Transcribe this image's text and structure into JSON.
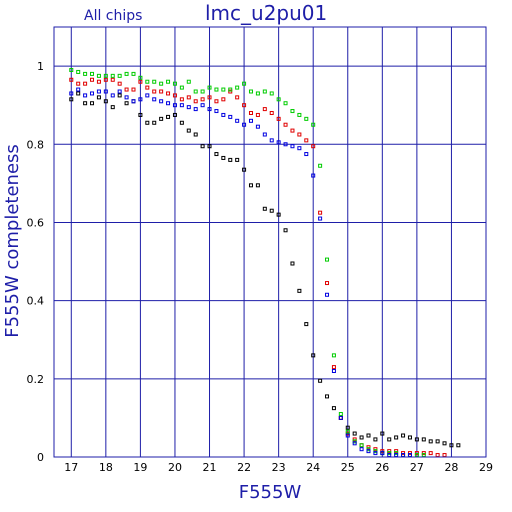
{
  "chart_data": {
    "type": "scatter",
    "title": "lmc_u2pu01",
    "subtitle": "All chips",
    "xlabel": "F555W",
    "ylabel": "F555W completeness",
    "xlim": [
      16.5,
      29
    ],
    "ylim": [
      0,
      1.1
    ],
    "x_ticks": [
      17,
      18,
      19,
      20,
      21,
      22,
      23,
      24,
      25,
      26,
      27,
      28,
      29
    ],
    "y_ticks": [
      0,
      0.2,
      0.4,
      0.6,
      0.8,
      1
    ],
    "y_tick_labels": [
      "0",
      "0.2",
      "0.4",
      "0.6",
      "0.8",
      "1"
    ],
    "grid": true,
    "colors": {
      "axis": "#1e1ea8",
      "grid": "#1e1ea8"
    },
    "series": [
      {
        "color": "#000000",
        "points": [
          [
            17,
            0.915
          ],
          [
            17.2,
            0.93
          ],
          [
            17.4,
            0.905
          ],
          [
            17.6,
            0.905
          ],
          [
            17.8,
            0.92
          ],
          [
            18,
            0.91
          ],
          [
            18.2,
            0.895
          ],
          [
            18.4,
            0.925
          ],
          [
            18.6,
            0.905
          ],
          [
            18.8,
            0.91
          ],
          [
            19,
            0.875
          ],
          [
            19.2,
            0.855
          ],
          [
            19.4,
            0.855
          ],
          [
            19.6,
            0.865
          ],
          [
            19.8,
            0.87
          ],
          [
            20,
            0.875
          ],
          [
            20.2,
            0.855
          ],
          [
            20.4,
            0.835
          ],
          [
            20.6,
            0.825
          ],
          [
            20.8,
            0.795
          ],
          [
            21,
            0.795
          ],
          [
            21.2,
            0.775
          ],
          [
            21.4,
            0.765
          ],
          [
            21.6,
            0.76
          ],
          [
            21.8,
            0.76
          ],
          [
            22,
            0.735
          ],
          [
            22.2,
            0.695
          ],
          [
            22.4,
            0.695
          ],
          [
            22.6,
            0.635
          ],
          [
            22.8,
            0.63
          ],
          [
            23,
            0.62
          ],
          [
            23.2,
            0.58
          ],
          [
            23.4,
            0.495
          ],
          [
            23.6,
            0.425
          ],
          [
            23.8,
            0.34
          ],
          [
            24,
            0.26
          ],
          [
            24.2,
            0.195
          ],
          [
            24.4,
            0.155
          ],
          [
            24.6,
            0.125
          ],
          [
            24.8,
            0.1
          ],
          [
            25,
            0.075
          ],
          [
            25.2,
            0.06
          ],
          [
            25.4,
            0.05
          ],
          [
            25.6,
            0.055
          ],
          [
            25.8,
            0.045
          ],
          [
            26,
            0.06
          ],
          [
            26.2,
            0.045
          ],
          [
            26.4,
            0.05
          ],
          [
            26.6,
            0.055
          ],
          [
            26.8,
            0.05
          ],
          [
            27,
            0.045
          ],
          [
            27.2,
            0.045
          ],
          [
            27.4,
            0.04
          ],
          [
            27.6,
            0.04
          ],
          [
            27.8,
            0.035
          ],
          [
            28,
            0.03
          ],
          [
            28.2,
            0.03
          ]
        ]
      },
      {
        "color": "#e00000",
        "points": [
          [
            17,
            0.965
          ],
          [
            17.2,
            0.955
          ],
          [
            17.4,
            0.955
          ],
          [
            17.6,
            0.965
          ],
          [
            17.8,
            0.96
          ],
          [
            18,
            0.965
          ],
          [
            18.2,
            0.965
          ],
          [
            18.4,
            0.955
          ],
          [
            18.6,
            0.94
          ],
          [
            18.8,
            0.94
          ],
          [
            19,
            0.96
          ],
          [
            19.2,
            0.945
          ],
          [
            19.4,
            0.935
          ],
          [
            19.6,
            0.935
          ],
          [
            19.8,
            0.93
          ],
          [
            20,
            0.925
          ],
          [
            20.2,
            0.915
          ],
          [
            20.4,
            0.92
          ],
          [
            20.6,
            0.91
          ],
          [
            20.8,
            0.915
          ],
          [
            21,
            0.92
          ],
          [
            21.2,
            0.91
          ],
          [
            21.4,
            0.915
          ],
          [
            21.6,
            0.935
          ],
          [
            21.8,
            0.92
          ],
          [
            22,
            0.9
          ],
          [
            22.2,
            0.88
          ],
          [
            22.4,
            0.875
          ],
          [
            22.6,
            0.89
          ],
          [
            22.8,
            0.88
          ],
          [
            23,
            0.865
          ],
          [
            23.2,
            0.85
          ],
          [
            23.4,
            0.835
          ],
          [
            23.6,
            0.825
          ],
          [
            23.8,
            0.81
          ],
          [
            24,
            0.795
          ],
          [
            24.2,
            0.625
          ],
          [
            24.4,
            0.445
          ],
          [
            24.6,
            0.23
          ],
          [
            24.8,
            0.1
          ],
          [
            25,
            0.06
          ],
          [
            25.2,
            0.045
          ],
          [
            25.4,
            0.03
          ],
          [
            25.6,
            0.025
          ],
          [
            25.8,
            0.02
          ],
          [
            26,
            0.015
          ],
          [
            26.2,
            0.015
          ],
          [
            26.4,
            0.015
          ],
          [
            26.6,
            0.01
          ],
          [
            26.8,
            0.01
          ],
          [
            27,
            0.01
          ],
          [
            27.2,
            0.01
          ],
          [
            27.4,
            0.01
          ],
          [
            27.6,
            0.005
          ],
          [
            27.8,
            0.005
          ]
        ]
      },
      {
        "color": "#00cc00",
        "points": [
          [
            17,
            0.99
          ],
          [
            17.2,
            0.985
          ],
          [
            17.4,
            0.98
          ],
          [
            17.6,
            0.98
          ],
          [
            17.8,
            0.975
          ],
          [
            18,
            0.975
          ],
          [
            18.2,
            0.975
          ],
          [
            18.4,
            0.975
          ],
          [
            18.6,
            0.98
          ],
          [
            18.8,
            0.98
          ],
          [
            19,
            0.97
          ],
          [
            19.2,
            0.96
          ],
          [
            19.4,
            0.96
          ],
          [
            19.6,
            0.955
          ],
          [
            19.8,
            0.96
          ],
          [
            20,
            0.955
          ],
          [
            20.2,
            0.945
          ],
          [
            20.4,
            0.96
          ],
          [
            20.6,
            0.935
          ],
          [
            20.8,
            0.935
          ],
          [
            21,
            0.945
          ],
          [
            21.2,
            0.94
          ],
          [
            21.4,
            0.94
          ],
          [
            21.6,
            0.94
          ],
          [
            21.8,
            0.945
          ],
          [
            22,
            0.955
          ],
          [
            22.2,
            0.935
          ],
          [
            22.4,
            0.93
          ],
          [
            22.6,
            0.935
          ],
          [
            22.8,
            0.93
          ],
          [
            23,
            0.915
          ],
          [
            23.2,
            0.905
          ],
          [
            23.4,
            0.885
          ],
          [
            23.6,
            0.875
          ],
          [
            23.8,
            0.865
          ],
          [
            24,
            0.85
          ],
          [
            24.2,
            0.745
          ],
          [
            24.4,
            0.505
          ],
          [
            24.6,
            0.26
          ],
          [
            24.8,
            0.11
          ],
          [
            25,
            0.065
          ],
          [
            25.2,
            0.04
          ],
          [
            25.4,
            0.03
          ],
          [
            25.6,
            0.02
          ],
          [
            25.8,
            0.015
          ],
          [
            26,
            0.01
          ],
          [
            26.2,
            0.01
          ],
          [
            26.4,
            0.01
          ],
          [
            26.6,
            0.005
          ],
          [
            26.8,
            0.005
          ],
          [
            27,
            0.005
          ],
          [
            27.2,
            0.005
          ]
        ]
      },
      {
        "color": "#0000e0",
        "points": [
          [
            17,
            0.93
          ],
          [
            17.2,
            0.94
          ],
          [
            17.4,
            0.925
          ],
          [
            17.6,
            0.93
          ],
          [
            17.8,
            0.935
          ],
          [
            18,
            0.935
          ],
          [
            18.2,
            0.925
          ],
          [
            18.4,
            0.935
          ],
          [
            18.6,
            0.92
          ],
          [
            18.8,
            0.91
          ],
          [
            19,
            0.915
          ],
          [
            19.2,
            0.925
          ],
          [
            19.4,
            0.915
          ],
          [
            19.6,
            0.91
          ],
          [
            19.8,
            0.905
          ],
          [
            20,
            0.9
          ],
          [
            20.2,
            0.9
          ],
          [
            20.4,
            0.895
          ],
          [
            20.6,
            0.89
          ],
          [
            20.8,
            0.9
          ],
          [
            21,
            0.89
          ],
          [
            21.2,
            0.885
          ],
          [
            21.4,
            0.875
          ],
          [
            21.6,
            0.87
          ],
          [
            21.8,
            0.86
          ],
          [
            22,
            0.85
          ],
          [
            22.2,
            0.86
          ],
          [
            22.4,
            0.845
          ],
          [
            22.6,
            0.825
          ],
          [
            22.8,
            0.81
          ],
          [
            23,
            0.805
          ],
          [
            23.2,
            0.8
          ],
          [
            23.4,
            0.795
          ],
          [
            23.6,
            0.79
          ],
          [
            23.8,
            0.775
          ],
          [
            24,
            0.72
          ],
          [
            24.2,
            0.61
          ],
          [
            24.4,
            0.415
          ],
          [
            24.6,
            0.22
          ],
          [
            24.8,
            0.1
          ],
          [
            25,
            0.055
          ],
          [
            25.2,
            0.035
          ],
          [
            25.4,
            0.02
          ],
          [
            25.6,
            0.015
          ],
          [
            25.8,
            0.01
          ],
          [
            26,
            0.01
          ],
          [
            26.2,
            0.005
          ],
          [
            26.4,
            0.005
          ],
          [
            26.6,
            0.005
          ],
          [
            26.8,
            0.005
          ]
        ]
      }
    ]
  }
}
